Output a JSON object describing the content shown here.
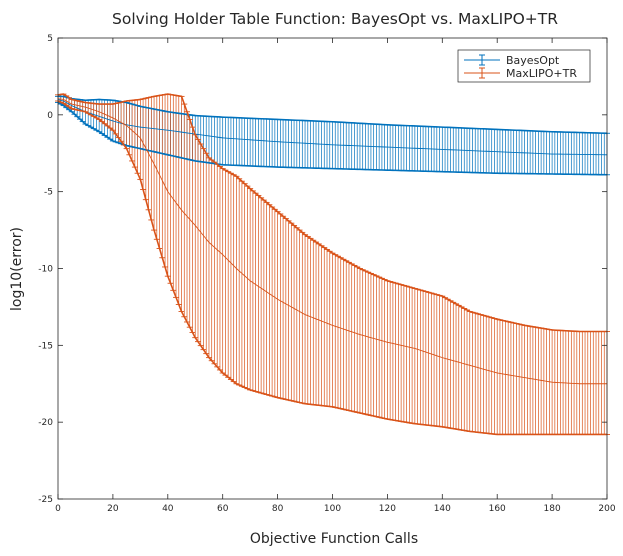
{
  "chart_data": {
    "type": "line",
    "title": "Solving Holder Table Function: BayesOpt vs. MaxLIPO+TR",
    "xlabel": "Objective Function Calls",
    "ylabel": "log10(error)",
    "xlim": [
      0,
      200
    ],
    "ylim": [
      -25,
      5
    ],
    "xticks": [
      0,
      20,
      40,
      60,
      80,
      100,
      120,
      140,
      160,
      180,
      200
    ],
    "yticks": [
      5,
      0,
      -5,
      -10,
      -15,
      -20,
      -25
    ],
    "grid": false,
    "legend_position": "top-right",
    "series": [
      {
        "name": "BayesOpt",
        "color": "#0072BD",
        "style": "errorbar",
        "points": [
          {
            "x": 0,
            "mean": 1.0,
            "upper": 1.2,
            "lower": 0.8
          },
          {
            "x": 2,
            "mean": 0.9,
            "upper": 1.2,
            "lower": 0.6
          },
          {
            "x": 5,
            "mean": 0.6,
            "upper": 1.05,
            "lower": 0.2
          },
          {
            "x": 10,
            "mean": 0.2,
            "upper": 0.95,
            "lower": -0.6
          },
          {
            "x": 15,
            "mean": -0.1,
            "upper": 1.0,
            "lower": -1.1
          },
          {
            "x": 20,
            "mean": -0.4,
            "upper": 0.95,
            "lower": -1.7
          },
          {
            "x": 25,
            "mean": -0.65,
            "upper": 0.8,
            "lower": -2.0
          },
          {
            "x": 30,
            "mean": -0.8,
            "upper": 0.55,
            "lower": -2.2
          },
          {
            "x": 40,
            "mean": -1.0,
            "upper": 0.2,
            "lower": -2.6
          },
          {
            "x": 50,
            "mean": -1.25,
            "upper": -0.05,
            "lower": -3.0
          },
          {
            "x": 60,
            "mean": -1.5,
            "upper": -0.15,
            "lower": -3.25
          },
          {
            "x": 80,
            "mean": -1.75,
            "upper": -0.3,
            "lower": -3.4
          },
          {
            "x": 100,
            "mean": -1.95,
            "upper": -0.45,
            "lower": -3.5
          },
          {
            "x": 120,
            "mean": -2.1,
            "upper": -0.65,
            "lower": -3.6
          },
          {
            "x": 140,
            "mean": -2.25,
            "upper": -0.8,
            "lower": -3.7
          },
          {
            "x": 160,
            "mean": -2.4,
            "upper": -0.95,
            "lower": -3.8
          },
          {
            "x": 180,
            "mean": -2.55,
            "upper": -1.1,
            "lower": -3.85
          },
          {
            "x": 200,
            "mean": -2.6,
            "upper": -1.2,
            "lower": -3.9
          }
        ]
      },
      {
        "name": "MaxLIPO+TR",
        "color": "#D95319",
        "style": "errorbar",
        "points": [
          {
            "x": 0,
            "mean": 1.05,
            "upper": 1.3,
            "lower": 0.9
          },
          {
            "x": 2,
            "mean": 1.0,
            "upper": 1.35,
            "lower": 0.75
          },
          {
            "x": 5,
            "mean": 0.7,
            "upper": 1.0,
            "lower": 0.4
          },
          {
            "x": 10,
            "mean": 0.5,
            "upper": 0.8,
            "lower": 0.2
          },
          {
            "x": 15,
            "mean": 0.2,
            "upper": 0.7,
            "lower": -0.3
          },
          {
            "x": 20,
            "mean": -0.2,
            "upper": 0.7,
            "lower": -1.0
          },
          {
            "x": 25,
            "mean": -0.7,
            "upper": 0.9,
            "lower": -2.2
          },
          {
            "x": 30,
            "mean": -1.5,
            "upper": 1.0,
            "lower": -4.2
          },
          {
            "x": 35,
            "mean": -3.2,
            "upper": 1.2,
            "lower": -7.5
          },
          {
            "x": 40,
            "mean": -5.0,
            "upper": 1.35,
            "lower": -10.5
          },
          {
            "x": 45,
            "mean": -6.2,
            "upper": 1.2,
            "lower": -12.8
          },
          {
            "x": 50,
            "mean": -7.2,
            "upper": -1.3,
            "lower": -14.5
          },
          {
            "x": 55,
            "mean": -8.3,
            "upper": -2.8,
            "lower": -15.8
          },
          {
            "x": 60,
            "mean": -9.1,
            "upper": -3.5,
            "lower": -16.8
          },
          {
            "x": 65,
            "mean": -10.0,
            "upper": -4.0,
            "lower": -17.5
          },
          {
            "x": 70,
            "mean": -10.8,
            "upper": -4.8,
            "lower": -17.9
          },
          {
            "x": 80,
            "mean": -12.0,
            "upper": -6.3,
            "lower": -18.4
          },
          {
            "x": 90,
            "mean": -13.0,
            "upper": -7.8,
            "lower": -18.8
          },
          {
            "x": 100,
            "mean": -13.7,
            "upper": -9.0,
            "lower": -19.0
          },
          {
            "x": 110,
            "mean": -14.3,
            "upper": -10.0,
            "lower": -19.4
          },
          {
            "x": 120,
            "mean": -14.8,
            "upper": -10.8,
            "lower": -19.8
          },
          {
            "x": 130,
            "mean": -15.2,
            "upper": -11.3,
            "lower": -20.1
          },
          {
            "x": 140,
            "mean": -15.8,
            "upper": -11.8,
            "lower": -20.3
          },
          {
            "x": 150,
            "mean": -16.3,
            "upper": -12.8,
            "lower": -20.6
          },
          {
            "x": 160,
            "mean": -16.8,
            "upper": -13.3,
            "lower": -20.8
          },
          {
            "x": 170,
            "mean": -17.1,
            "upper": -13.7,
            "lower": -20.8
          },
          {
            "x": 180,
            "mean": -17.4,
            "upper": -14.0,
            "lower": -20.8
          },
          {
            "x": 190,
            "mean": -17.5,
            "upper": -14.1,
            "lower": -20.8
          },
          {
            "x": 200,
            "mean": -17.5,
            "upper": -14.1,
            "lower": -20.8
          }
        ]
      }
    ]
  }
}
